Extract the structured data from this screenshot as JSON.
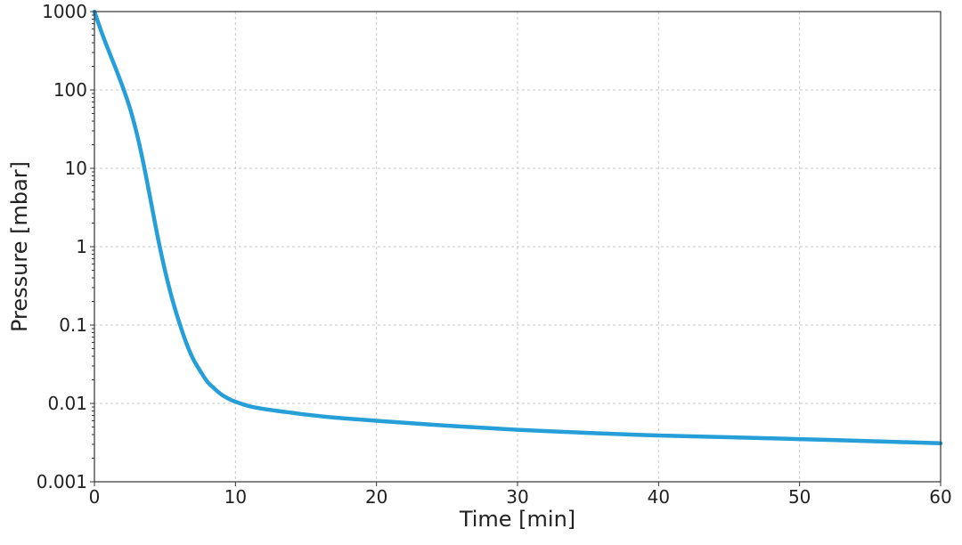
{
  "chart_data": {
    "type": "line",
    "xlabel": "Time [min]",
    "ylabel": "Pressure [mbar]",
    "xlim": [
      0,
      60
    ],
    "ylim": [
      0.001,
      1000
    ],
    "yscale": "log",
    "grid": true,
    "xticks": [
      0,
      10,
      20,
      30,
      40,
      50,
      60
    ],
    "xtick_labels": [
      "0",
      "10",
      "20",
      "30",
      "40",
      "50",
      "60"
    ],
    "yticks": [
      0.001,
      0.01,
      0.1,
      1,
      10,
      100,
      1000
    ],
    "ytick_labels": [
      "0.001",
      "0.01",
      "0.1",
      "1",
      "10",
      "100",
      "1000"
    ],
    "line_color": "#269fd8",
    "series": [
      {
        "x": [
          0,
          0.5,
          1,
          1.5,
          2,
          2.5,
          3,
          3.5,
          4,
          4.5,
          5,
          5.5,
          6,
          6.5,
          7,
          7.5,
          8,
          8.5,
          9,
          9.5,
          10,
          11,
          12,
          13,
          14,
          15,
          17,
          20,
          25,
          30,
          35,
          40,
          45,
          50,
          55,
          60
        ],
        "y": [
          1000,
          550,
          320,
          190,
          110,
          60,
          28,
          11,
          3.8,
          1.3,
          0.5,
          0.22,
          0.11,
          0.06,
          0.037,
          0.026,
          0.019,
          0.0155,
          0.013,
          0.0115,
          0.0105,
          0.0092,
          0.0085,
          0.008,
          0.0076,
          0.0072,
          0.0066,
          0.006,
          0.0052,
          0.0046,
          0.0042,
          0.0039,
          0.0037,
          0.0035,
          0.0033,
          0.0031
        ]
      }
    ]
  }
}
